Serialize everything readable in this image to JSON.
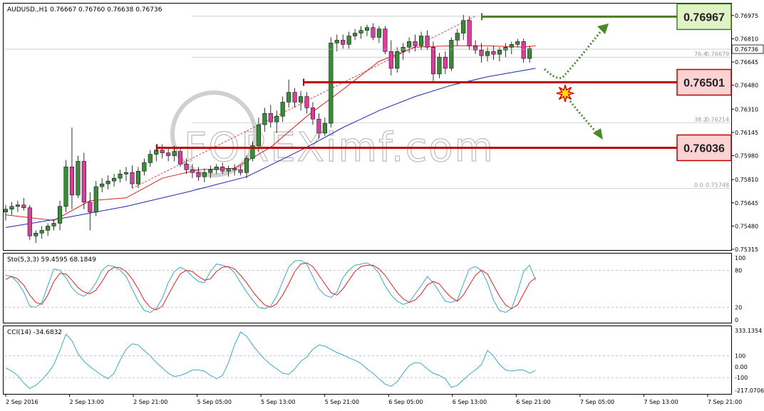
{
  "chart_data": [
    {
      "type": "candlestick",
      "panel": "price",
      "header": "AUDUSD.,H1  0.76667 0.76760 0.76638 0.76736",
      "price_axis_ticks": [
        "0.76975",
        "0.76810",
        "0.76645",
        "0.76480",
        "0.76310",
        "0.76145",
        "0.75980",
        "0.75810",
        "0.75645",
        "0.75480",
        "0.75315"
      ],
      "ylim": [
        0.7531,
        0.7706
      ],
      "current_price": "0.76736",
      "x_ticks": [
        "2 Sep 2016",
        "2 Sep 13:00",
        "2 Sep 21:00",
        "5 Sep 05:00",
        "5 Sep 13:00",
        "5 Sep 21:00",
        "6 Sep 05:00",
        "6 Sep 13:00",
        "6 Sep 21:00",
        "7 Sep 05:00",
        "7 Sep 13:00",
        "7 Sep 21:00"
      ],
      "levels": [
        {
          "label": "0.76967",
          "value": 0.76967,
          "color": "#4a7d1e",
          "fill": "#dff2c8"
        },
        {
          "label": "0.76501",
          "value": 0.76501,
          "color": "#c00000",
          "fill": "#fbd3d3"
        },
        {
          "label": "0.76036",
          "value": 0.76036,
          "color": "#c00000",
          "fill": "#fbd3d3"
        }
      ],
      "fibonacci": [
        {
          "label": "76.4",
          "price_label": "0.76679",
          "value": 0.76679
        },
        {
          "label": "38.2",
          "price_label": "0.76214",
          "value": 0.76214
        },
        {
          "label": "0.0",
          "price_label": "0.75748",
          "value": 0.75748
        }
      ],
      "fib_top": 0.7697,
      "watermark": "FOREXimf.com",
      "colors": {
        "bull": "#3a8a3a",
        "bear": "#d6409a",
        "ma_fast": "#e02020",
        "ma_slow": "#1a2ab0"
      },
      "candles": [
        [
          0.7558,
          0.7563,
          0.7552,
          0.756
        ],
        [
          0.756,
          0.7565,
          0.7556,
          0.7562
        ],
        [
          0.7562,
          0.7566,
          0.7558,
          0.7563
        ],
        [
          0.7563,
          0.7568,
          0.7559,
          0.7561
        ],
        [
          0.7561,
          0.7563,
          0.7538,
          0.7541
        ],
        [
          0.7541,
          0.7545,
          0.7536,
          0.7543
        ],
        [
          0.7543,
          0.7548,
          0.7539,
          0.7545
        ],
        [
          0.7545,
          0.755,
          0.7541,
          0.7548
        ],
        [
          0.7548,
          0.7552,
          0.7545,
          0.755
        ],
        [
          0.755,
          0.7566,
          0.7545,
          0.7562
        ],
        [
          0.7562,
          0.7595,
          0.7558,
          0.759
        ],
        [
          0.759,
          0.7618,
          0.756,
          0.757
        ],
        [
          0.757,
          0.7598,
          0.7568,
          0.7594
        ],
        [
          0.7594,
          0.76,
          0.756,
          0.7565
        ],
        [
          0.7565,
          0.7572,
          0.7545,
          0.7558
        ],
        [
          0.7558,
          0.758,
          0.7555,
          0.7576
        ],
        [
          0.7576,
          0.7582,
          0.7572,
          0.7578
        ],
        [
          0.7578,
          0.7584,
          0.7574,
          0.758
        ],
        [
          0.758,
          0.7585,
          0.7576,
          0.7582
        ],
        [
          0.7582,
          0.7588,
          0.7579,
          0.7585
        ],
        [
          0.7585,
          0.759,
          0.758,
          0.7586
        ],
        [
          0.7586,
          0.7591,
          0.7575,
          0.7578
        ],
        [
          0.7578,
          0.759,
          0.7575,
          0.7587
        ],
        [
          0.7587,
          0.7596,
          0.7584,
          0.7593
        ],
        [
          0.7593,
          0.7602,
          0.759,
          0.7599
        ],
        [
          0.7599,
          0.7606,
          0.7594,
          0.7602
        ],
        [
          0.7602,
          0.7606,
          0.7596,
          0.76
        ],
        [
          0.76,
          0.7604,
          0.7594,
          0.7598
        ],
        [
          0.7598,
          0.7605,
          0.7594,
          0.7601
        ],
        [
          0.7601,
          0.7603,
          0.759,
          0.7592
        ],
        [
          0.7592,
          0.7596,
          0.7585,
          0.7588
        ],
        [
          0.7588,
          0.7592,
          0.7582,
          0.7586
        ],
        [
          0.7586,
          0.759,
          0.758,
          0.7583
        ],
        [
          0.7583,
          0.7589,
          0.7579,
          0.7586
        ],
        [
          0.7586,
          0.7591,
          0.7582,
          0.7588
        ],
        [
          0.7588,
          0.7592,
          0.7585,
          0.759
        ],
        [
          0.759,
          0.7593,
          0.7585,
          0.7587
        ],
        [
          0.7587,
          0.7591,
          0.7583,
          0.7589
        ],
        [
          0.7589,
          0.7592,
          0.7584,
          0.7588
        ],
        [
          0.7588,
          0.7591,
          0.7584,
          0.7586
        ],
        [
          0.7586,
          0.7598,
          0.7582,
          0.7596
        ],
        [
          0.7596,
          0.7608,
          0.7594,
          0.7605
        ],
        [
          0.7605,
          0.7625,
          0.7601,
          0.762
        ],
        [
          0.762,
          0.7632,
          0.7615,
          0.7628
        ],
        [
          0.7628,
          0.7634,
          0.7618,
          0.7622
        ],
        [
          0.7622,
          0.763,
          0.7614,
          0.7626
        ],
        [
          0.7626,
          0.764,
          0.7622,
          0.7636
        ],
        [
          0.7636,
          0.7652,
          0.7632,
          0.7643
        ],
        [
          0.7643,
          0.7646,
          0.7632,
          0.7636
        ],
        [
          0.7636,
          0.7644,
          0.763,
          0.764
        ],
        [
          0.764,
          0.7643,
          0.7628,
          0.7632
        ],
        [
          0.7632,
          0.7636,
          0.762,
          0.7624
        ],
        [
          0.7624,
          0.7628,
          0.761,
          0.7614
        ],
        [
          0.7614,
          0.7625,
          0.7612,
          0.7621
        ],
        [
          0.7621,
          0.7682,
          0.7618,
          0.7678
        ],
        [
          0.7678,
          0.7684,
          0.7672,
          0.768
        ],
        [
          0.768,
          0.7684,
          0.7674,
          0.7677
        ],
        [
          0.7677,
          0.7686,
          0.7674,
          0.7683
        ],
        [
          0.7683,
          0.7688,
          0.768,
          0.7685
        ],
        [
          0.7685,
          0.769,
          0.7681,
          0.7687
        ],
        [
          0.7687,
          0.7691,
          0.7683,
          0.7689
        ],
        [
          0.7689,
          0.7692,
          0.768,
          0.7682
        ],
        [
          0.7682,
          0.769,
          0.7678,
          0.7688
        ],
        [
          0.7688,
          0.769,
          0.767,
          0.7672
        ],
        [
          0.7672,
          0.768,
          0.7655,
          0.766
        ],
        [
          0.766,
          0.7675,
          0.7657,
          0.7672
        ],
        [
          0.7672,
          0.7678,
          0.7666,
          0.7675
        ],
        [
          0.7675,
          0.7682,
          0.7671,
          0.7679
        ],
        [
          0.7679,
          0.7684,
          0.7672,
          0.7676
        ],
        [
          0.7676,
          0.7686,
          0.7673,
          0.7683
        ],
        [
          0.7683,
          0.7687,
          0.7673,
          0.7675
        ],
        [
          0.7675,
          0.7679,
          0.765,
          0.7656
        ],
        [
          0.7656,
          0.7671,
          0.7653,
          0.7668
        ],
        [
          0.7668,
          0.7672,
          0.7656,
          0.766
        ],
        [
          0.766,
          0.7682,
          0.7658,
          0.768
        ],
        [
          0.768,
          0.7688,
          0.7676,
          0.7685
        ],
        [
          0.7685,
          0.7698,
          0.768,
          0.7694
        ],
        [
          0.7694,
          0.7697,
          0.7673,
          0.7676
        ],
        [
          0.7676,
          0.768,
          0.767,
          0.7673
        ],
        [
          0.7673,
          0.7678,
          0.7664,
          0.7669
        ],
        [
          0.7669,
          0.7675,
          0.7665,
          0.7672
        ],
        [
          0.7672,
          0.7676,
          0.7666,
          0.767
        ],
        [
          0.767,
          0.7675,
          0.7665,
          0.7673
        ],
        [
          0.7673,
          0.7678,
          0.7668,
          0.7675
        ],
        [
          0.7675,
          0.7679,
          0.767,
          0.7677
        ],
        [
          0.7677,
          0.7681,
          0.7675,
          0.7679
        ],
        [
          0.7679,
          0.7681,
          0.7664,
          0.7667
        ],
        [
          0.7667,
          0.7676,
          0.7664,
          0.7674
        ]
      ],
      "ma_fast": [
        [
          0,
          0.7556
        ],
        [
          8,
          0.7552
        ],
        [
          14,
          0.7566
        ],
        [
          20,
          0.7568
        ],
        [
          26,
          0.7582
        ],
        [
          32,
          0.7588
        ],
        [
          38,
          0.7589
        ],
        [
          44,
          0.7604
        ],
        [
          50,
          0.7626
        ],
        [
          56,
          0.7645
        ],
        [
          62,
          0.7665
        ],
        [
          68,
          0.7675
        ],
        [
          74,
          0.7676
        ],
        [
          80,
          0.7676
        ],
        [
          86,
          0.7675
        ],
        [
          88,
          0.7676
        ]
      ],
      "ma_slow": [
        [
          0,
          0.7547
        ],
        [
          10,
          0.7554
        ],
        [
          20,
          0.7562
        ],
        [
          30,
          0.7572
        ],
        [
          40,
          0.7583
        ],
        [
          50,
          0.7604
        ],
        [
          56,
          0.7618
        ],
        [
          62,
          0.763
        ],
        [
          68,
          0.764
        ],
        [
          74,
          0.7648
        ],
        [
          80,
          0.7654
        ],
        [
          88,
          0.766
        ]
      ]
    },
    {
      "type": "line",
      "panel": "stochastic",
      "header": "Sto(5,3,3) 59.4595 68.1849",
      "axis_ticks": [
        "100",
        "80",
        "20",
        "0"
      ],
      "ylim": [
        0,
        100
      ],
      "series": [
        {
          "name": "",
          "color": "#3ba8c8",
          "values": [
            72,
            70,
            60,
            45,
            22,
            20,
            28,
            55,
            82,
            80,
            68,
            52,
            42,
            38,
            46,
            60,
            80,
            88,
            86,
            80,
            70,
            50,
            30,
            15,
            12,
            18,
            35,
            60,
            78,
            85,
            80,
            70,
            62,
            60,
            78,
            90,
            88,
            85,
            76,
            60,
            45,
            32,
            20,
            18,
            22,
            38,
            62,
            85,
            95,
            96,
            90,
            70,
            50,
            40,
            36,
            45,
            68,
            80,
            88,
            90,
            92,
            86,
            75,
            55,
            40,
            30,
            25,
            28,
            42,
            55,
            70,
            60,
            45,
            30,
            28,
            32,
            58,
            82,
            86,
            80,
            60,
            32,
            15,
            12,
            18,
            45,
            78,
            88,
            64
          ]
        },
        {
          "name": "",
          "color": "#e02020",
          "values": [
            65,
            70,
            66,
            56,
            40,
            28,
            25,
            40,
            62,
            75,
            74,
            64,
            52,
            45,
            42,
            48,
            62,
            78,
            85,
            84,
            78,
            66,
            50,
            32,
            20,
            16,
            22,
            40,
            58,
            74,
            80,
            78,
            70,
            64,
            66,
            78,
            85,
            86,
            82,
            72,
            60,
            46,
            34,
            24,
            20,
            26,
            40,
            58,
            78,
            90,
            92,
            86,
            72,
            58,
            44,
            40,
            50,
            64,
            78,
            86,
            88,
            88,
            82,
            72,
            58,
            44,
            34,
            28,
            32,
            42,
            56,
            62,
            58,
            46,
            36,
            30,
            40,
            56,
            72,
            80,
            74,
            56,
            38,
            24,
            18,
            24,
            42,
            60,
            68
          ]
        }
      ]
    },
    {
      "type": "line",
      "panel": "cci",
      "header": "CCI(14) -34.6832",
      "axis_ticks": [
        "333.1354",
        "100",
        "0.00",
        "-100",
        "-217.0706"
      ],
      "ylim": [
        -217.0706,
        333.1354
      ],
      "series": [
        {
          "name": "",
          "color": "#3ba8c8",
          "values": [
            -10,
            -40,
            -80,
            -150,
            -200,
            -170,
            -120,
            -60,
            20,
            150,
            300,
            240,
            120,
            50,
            0,
            -40,
            -80,
            -110,
            -60,
            60,
            160,
            210,
            200,
            150,
            100,
            40,
            -10,
            -60,
            -90,
            -80,
            -60,
            -30,
            -30,
            -40,
            -80,
            -110,
            -80,
            40,
            200,
            320,
            280,
            200,
            130,
            70,
            20,
            -20,
            -60,
            -70,
            -20,
            50,
            90,
            160,
            200,
            190,
            160,
            130,
            110,
            80,
            60,
            30,
            -20,
            -60,
            -110,
            -160,
            -180,
            -140,
            -60,
            10,
            40,
            30,
            -20,
            -60,
            -80,
            -110,
            -190,
            -170,
            -120,
            -70,
            -30,
            20,
            150,
            100,
            20,
            -30,
            -40,
            -30,
            -30,
            -60,
            -35
          ]
        }
      ]
    }
  ]
}
